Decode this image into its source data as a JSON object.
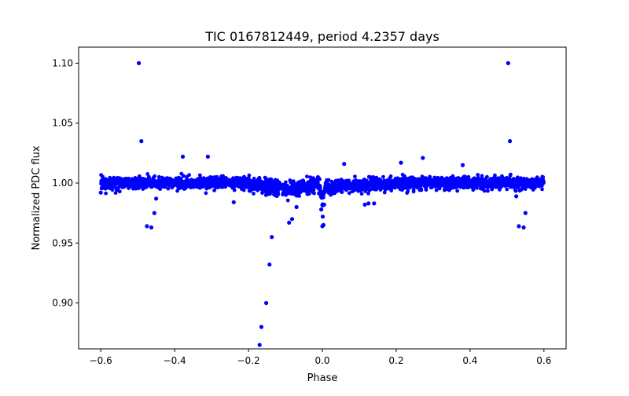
{
  "chart_data": {
    "type": "scatter",
    "title": "TIC 0167812449, period 4.2357 days",
    "xlabel": "Phase",
    "ylabel": "Normalized PDC flux",
    "xlim": [
      -0.66,
      0.66
    ],
    "ylim": [
      0.8617,
      1.1134
    ],
    "xticks": [
      -0.6,
      -0.4,
      -0.2,
      0.0,
      0.2,
      0.4,
      0.6
    ],
    "xtick_labels": [
      "−0.6",
      "−0.4",
      "−0.2",
      "0.0",
      "0.2",
      "0.4",
      "0.6"
    ],
    "yticks": [
      0.9,
      0.95,
      1.0,
      1.05,
      1.1
    ],
    "ytick_labels": [
      "0.90",
      "0.95",
      "1.00",
      "1.05",
      "1.10"
    ],
    "grid": false,
    "legend": "none",
    "marker_color": "#0000ff",
    "band": {
      "description": "dense phase-folded light curve band",
      "x_range": [
        -0.6,
        0.6
      ],
      "center_flux": 1.0,
      "scatter": 0.0045,
      "n_points": 2600
    },
    "outliers": [
      {
        "x": -0.497,
        "y": 1.1
      },
      {
        "x": 0.503,
        "y": 1.1
      },
      {
        "x": -0.49,
        "y": 1.035
      },
      {
        "x": 0.508,
        "y": 1.035
      },
      {
        "x": -0.378,
        "y": 1.022
      },
      {
        "x": -0.31,
        "y": 1.022
      },
      {
        "x": 0.272,
        "y": 1.021
      },
      {
        "x": 0.213,
        "y": 1.017
      },
      {
        "x": 0.059,
        "y": 1.016
      },
      {
        "x": -0.475,
        "y": 0.964
      },
      {
        "x": -0.463,
        "y": 0.963
      },
      {
        "x": -0.455,
        "y": 0.975
      },
      {
        "x": -0.45,
        "y": 0.987
      },
      {
        "x": 0.532,
        "y": 0.964
      },
      {
        "x": 0.545,
        "y": 0.963
      },
      {
        "x": 0.55,
        "y": 0.975
      },
      {
        "x": 0.525,
        "y": 0.989
      },
      {
        "x": -0.137,
        "y": 0.955
      },
      {
        "x": -0.143,
        "y": 0.932
      },
      {
        "x": -0.152,
        "y": 0.9
      },
      {
        "x": -0.165,
        "y": 0.88
      },
      {
        "x": -0.17,
        "y": 0.865
      },
      {
        "x": -0.082,
        "y": 0.97
      },
      {
        "x": -0.09,
        "y": 0.967
      },
      {
        "x": -0.07,
        "y": 0.98
      },
      {
        "x": 0.0,
        "y": 0.964
      },
      {
        "x": 0.003,
        "y": 0.965
      },
      {
        "x": 0.001,
        "y": 0.972
      },
      {
        "x": -0.003,
        "y": 0.978
      },
      {
        "x": 0.005,
        "y": 0.982
      },
      {
        "x": 0.115,
        "y": 0.982
      },
      {
        "x": 0.125,
        "y": 0.983
      },
      {
        "x": 0.14,
        "y": 0.983
      },
      {
        "x": -0.24,
        "y": 0.984
      },
      {
        "x": 0.38,
        "y": 1.015
      },
      {
        "x": -0.6,
        "y": 0.992
      }
    ]
  }
}
